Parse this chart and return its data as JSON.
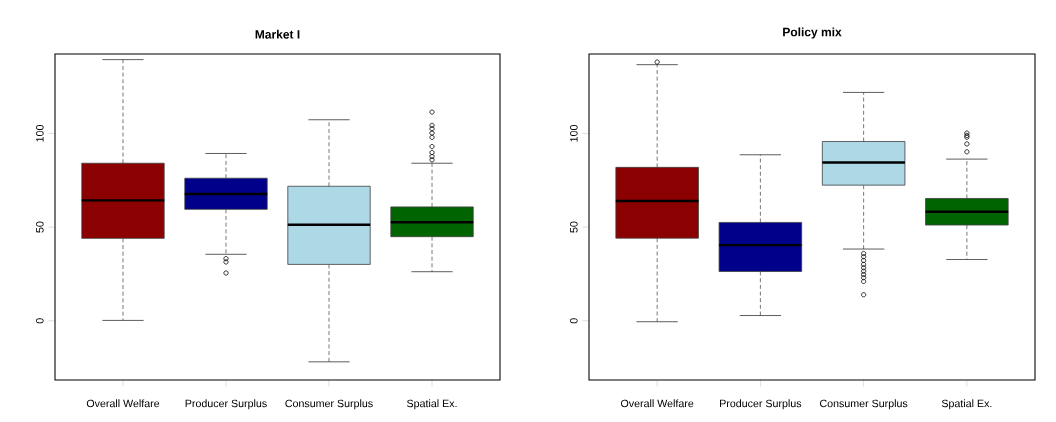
{
  "chart_data": [
    {
      "type": "box",
      "title": "Market I",
      "categories": [
        "Overall Welfare",
        "Producer Surplus",
        "Consumer Surplus",
        "Spatial Ex."
      ],
      "colors": [
        "#8b0000",
        "#00008b",
        "#add8e6",
        "#006400"
      ],
      "boxes": [
        {
          "low": 0.2,
          "q1": 44.0,
          "median": 64.3,
          "q3": 84.1,
          "high": 139.4
        },
        {
          "low": 35.5,
          "q1": 59.5,
          "median": 67.7,
          "q3": 76.1,
          "high": 89.3,
          "outliers": [
            33.2,
            31.4,
            25.5
          ]
        },
        {
          "low": -21.9,
          "q1": 30.1,
          "median": 51.3,
          "q3": 71.8,
          "high": 107.3
        },
        {
          "low": 26.2,
          "q1": 44.9,
          "median": 52.6,
          "q3": 60.8,
          "high": 84.1,
          "outliers": [
            111.4,
            104.3,
            102.5,
            100.2,
            97.9,
            93.0,
            89.8,
            87.7,
            85.9
          ]
        }
      ],
      "ylim": [
        -31.6,
        142.4
      ],
      "yticks": [
        0,
        50,
        100
      ],
      "grid": false
    },
    {
      "type": "box",
      "title": "Policy mix",
      "categories": [
        "Overall Welfare",
        "Producer Surplus",
        "Consumer Surplus",
        "Spatial Ex."
      ],
      "colors": [
        "#8b0000",
        "#00008b",
        "#add8e6",
        "#006400"
      ],
      "boxes": [
        {
          "low": -0.5,
          "q1": 44.1,
          "median": 63.9,
          "q3": 81.9,
          "high": 136.7,
          "outliers": [
            138.1
          ]
        },
        {
          "low": 2.8,
          "q1": 26.3,
          "median": 40.4,
          "q3": 52.5,
          "high": 88.6
        },
        {
          "low": 38.3,
          "q1": 72.4,
          "median": 84.5,
          "q3": 95.7,
          "high": 121.9,
          "outliers": [
            35.9,
            34.2,
            32.2,
            30.1,
            28.3,
            26.5,
            24.7,
            23.0,
            21.0,
            13.9
          ]
        },
        {
          "low": 32.7,
          "q1": 51.1,
          "median": 58.2,
          "q3": 65.3,
          "high": 86.3,
          "outliers": [
            100.2,
            98.9,
            98.0,
            94.4,
            90.2
          ]
        }
      ],
      "ylim": [
        -31.6,
        142.4
      ],
      "yticks": [
        0,
        50,
        100
      ],
      "grid": false
    }
  ]
}
